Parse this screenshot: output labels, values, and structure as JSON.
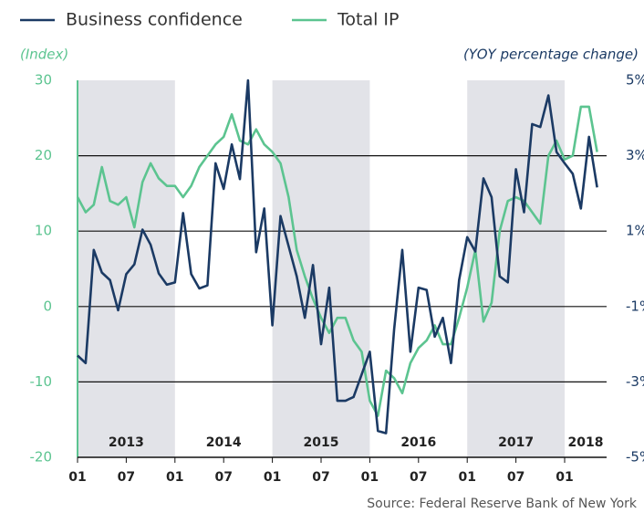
{
  "chart_data": {
    "type": "line",
    "legend": "top-left",
    "left_axis_label": "(Index)",
    "right_axis_label": "(YOY percentage change)",
    "source": "Source: Federal Reserve Bank of New York",
    "x": [
      "2013-01",
      "2013-02",
      "2013-03",
      "2013-04",
      "2013-05",
      "2013-06",
      "2013-07",
      "2013-08",
      "2013-09",
      "2013-10",
      "2013-11",
      "2013-12",
      "2014-01",
      "2014-02",
      "2014-03",
      "2014-04",
      "2014-05",
      "2014-06",
      "2014-07",
      "2014-08",
      "2014-09",
      "2014-10",
      "2014-11",
      "2014-12",
      "2015-01",
      "2015-02",
      "2015-03",
      "2015-04",
      "2015-05",
      "2015-06",
      "2015-07",
      "2015-08",
      "2015-09",
      "2015-10",
      "2015-11",
      "2015-12",
      "2016-01",
      "2016-02",
      "2016-03",
      "2016-04",
      "2016-05",
      "2016-06",
      "2016-07",
      "2016-08",
      "2016-09",
      "2016-10",
      "2016-11",
      "2016-12",
      "2017-01",
      "2017-02",
      "2017-03",
      "2017-04",
      "2017-05",
      "2017-06",
      "2017-07",
      "2017-08",
      "2017-09",
      "2017-10",
      "2017-11",
      "2017-12",
      "2018-01",
      "2018-02",
      "2018-03",
      "2018-04",
      "2018-05"
    ],
    "xticks": [
      {
        "value": "2013-01",
        "label": "01"
      },
      {
        "value": "2013-07",
        "label": "07"
      },
      {
        "value": "2014-01",
        "label": "01"
      },
      {
        "value": "2014-07",
        "label": "07"
      },
      {
        "value": "2015-01",
        "label": "01"
      },
      {
        "value": "2015-07",
        "label": "07"
      },
      {
        "value": "2016-01",
        "label": "01"
      },
      {
        "value": "2016-07",
        "label": "07"
      },
      {
        "value": "2017-01",
        "label": "01"
      },
      {
        "value": "2017-07",
        "label": "07"
      },
      {
        "value": "2018-01",
        "label": "01"
      }
    ],
    "year_labels": [
      "2013",
      "2014",
      "2015",
      "2016",
      "2017",
      "2018"
    ],
    "ylim": [
      -20,
      30
    ],
    "yticks": [
      -20,
      -10,
      0,
      10,
      20,
      30
    ],
    "y2lim": [
      -5,
      5
    ],
    "y2ticks": [
      {
        "value": -5,
        "label": "-5%"
      },
      {
        "value": -3,
        "label": "-3%"
      },
      {
        "value": -1,
        "label": "-1%"
      },
      {
        "value": 1,
        "label": "1%"
      },
      {
        "value": 3,
        "label": "3%"
      },
      {
        "value": 5,
        "label": "5%"
      }
    ],
    "grid": true,
    "series": [
      {
        "name": "Business confidence",
        "color": "#1b3a64",
        "values": [
          -6.5,
          -7.5,
          7.5,
          4.5,
          3.5,
          -0.5,
          4.3,
          5.6,
          10.2,
          8.2,
          4.4,
          2.9,
          3.2,
          12.4,
          4.3,
          2.4,
          2.8,
          19,
          15.6,
          21.5,
          16.9,
          30,
          7.2,
          13,
          -2.5,
          12,
          8,
          4,
          -1.5,
          5.5,
          -5,
          2.5,
          -12.5,
          -12.5,
          -12,
          -9,
          -6,
          -16.5,
          -16.8,
          -3,
          7.5,
          -6,
          2.5,
          2.2,
          -4,
          -1.5,
          -7.5,
          3.5,
          9.2,
          7.3,
          17,
          14.5,
          4,
          3.2,
          18.2,
          12.5,
          24.2,
          23.8,
          28,
          20.5,
          19,
          17.6,
          13,
          22.5,
          15.8
        ]
      },
      {
        "name": "Total IP",
        "color": "#5cc490",
        "axis": "y2",
        "values": [
          1.9,
          1.5,
          1.7,
          2.7,
          1.8,
          1.7,
          1.9,
          1.1,
          2.3,
          2.8,
          2.4,
          2.2,
          2.2,
          1.9,
          2.2,
          2.7,
          3.0,
          3.3,
          3.5,
          4.1,
          3.4,
          3.3,
          3.7,
          3.3,
          3.1,
          2.8,
          1.9,
          0.5,
          -0.2,
          -0.8,
          -1.3,
          -1.7,
          -1.3,
          -1.3,
          -1.9,
          -2.2,
          -3.5,
          -3.9,
          -2.7,
          -2.9,
          -3.3,
          -2.5,
          -2.1,
          -1.9,
          -1.5,
          -2.0,
          -2.0,
          -1.3,
          -0.5,
          0.5,
          -1.4,
          -0.9,
          1.0,
          1.8,
          1.9,
          1.8,
          1.5,
          1.2,
          3.0,
          3.4,
          2.9,
          3.0,
          4.3,
          4.3,
          3.1
        ]
      }
    ]
  }
}
